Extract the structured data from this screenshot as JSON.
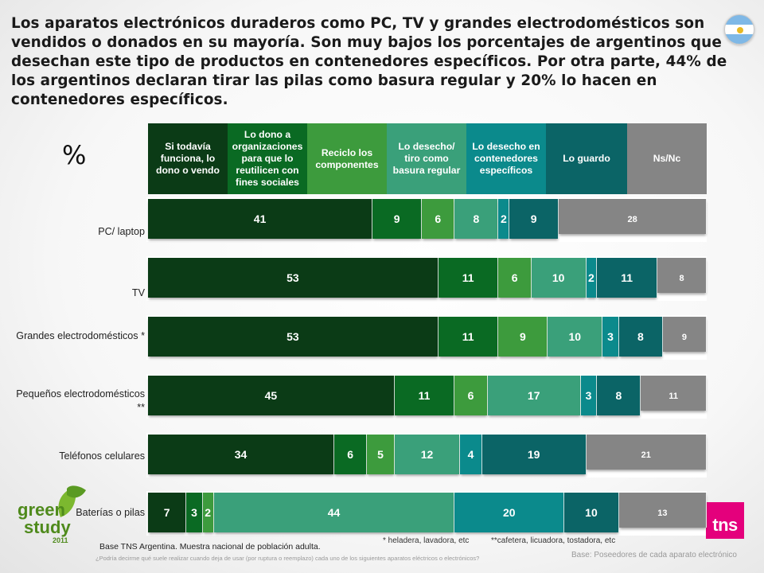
{
  "headline": "Los aparatos electrónicos duraderos como PC, TV y grandes electrodomésticos son vendidos o donados en su mayoría. Son muy bajos los porcentajes de argentinos que desechan este tipo de productos en contenedores específicos. Por otra parte, 44% de los argentinos declaran tirar las pilas como basura regular y 20% lo hacen en contenedores específicos.",
  "percent_symbol": "%",
  "colors": {
    "s1": "#0b3b16",
    "s2": "#0a6a23",
    "s3": "#3d9b3d",
    "s4": "#3aa07a",
    "s5": "#0b8a8c",
    "s6": "#0b6466",
    "s7": "#858585"
  },
  "footnotes": {
    "grandes": "* heladera, lavadora, etc",
    "pequenos": "**cafetera, licuadora, tostadora, etc"
  },
  "base_left": "Base TNS Argentina. Muestra nacional de población adulta.",
  "base_right": "Base: Poseedores de cada aparato electrónico",
  "question": "¿Podría decirme qué suele realizar cuando deja de usar (por ruptura o reemplazo) cada uno de los siguientes aparatos eléctricos o electrónicos?",
  "logos": {
    "green_study_line1": "green",
    "green_study_line2": "study",
    "green_study_year": "2011",
    "tns": "tns"
  },
  "chart_data": {
    "type": "bar",
    "orientation": "horizontal",
    "stacked": true,
    "title": "",
    "xlabel": "%",
    "ylabel": "",
    "categories": [
      "PC/ laptop",
      "TV",
      "Grandes electrodomésticos *",
      "Pequeños electrodomésticos **",
      "Teléfonos celulares",
      "Baterías o pilas"
    ],
    "series": [
      {
        "name": "Si todavía funciona, lo dono o vendo",
        "values": [
          41,
          53,
          53,
          45,
          34,
          7
        ]
      },
      {
        "name": "Lo dono a organizaciones para que lo reutilicen con fines sociales",
        "values": [
          9,
          11,
          11,
          11,
          6,
          3
        ]
      },
      {
        "name": "Reciclo los componentes",
        "values": [
          6,
          6,
          9,
          6,
          5,
          2
        ]
      },
      {
        "name": "Lo desecho/ tiro como basura regular",
        "values": [
          8,
          10,
          10,
          17,
          12,
          44
        ]
      },
      {
        "name": "Lo desecho en contenedores específicos",
        "values": [
          2,
          2,
          3,
          3,
          4,
          20
        ]
      },
      {
        "name": "Lo guardo",
        "values": [
          9,
          11,
          8,
          8,
          19,
          10
        ]
      },
      {
        "name": "Ns/Nc",
        "values": [
          28,
          8,
          9,
          11,
          21,
          13
        ]
      }
    ],
    "xlim": [
      0,
      100
    ]
  }
}
